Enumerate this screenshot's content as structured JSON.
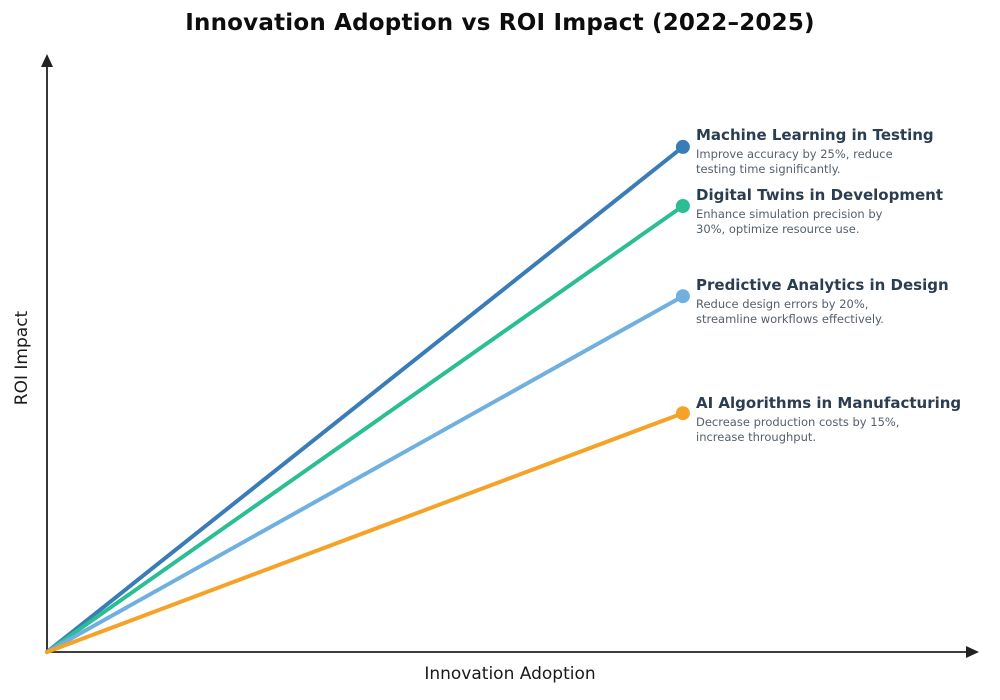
{
  "chart_data": {
    "type": "line",
    "title": "Innovation Adoption vs ROI Impact (2022–2025)",
    "xlabel": "Innovation Adoption",
    "ylabel": "ROI Impact",
    "xlim": [
      0,
      1
    ],
    "ylim": [
      0,
      1
    ],
    "grid": false,
    "ticks": "none",
    "legend": "inline annotations at line endpoints",
    "axis_style": "bare axes with arrowheads",
    "axis_color": "#222222",
    "series": [
      {
        "name": "Machine Learning in Testing",
        "description": "Improve accuracy by 25%, reduce\ntesting time significantly.",
        "color": "#3a7cb8",
        "x": [
          0,
          0.683
        ],
        "y": [
          0,
          0.846
        ]
      },
      {
        "name": "Digital Twins in Development",
        "description": "Enhance simulation precision by\n30%, optimize resource use.",
        "color": "#2cbe93",
        "x": [
          0,
          0.683
        ],
        "y": [
          0,
          0.747
        ]
      },
      {
        "name": "Predictive Analytics in Design",
        "description": "Reduce design errors by 20%,\nstreamline workflows effectively.",
        "color": "#6fb0e0",
        "x": [
          0,
          0.683
        ],
        "y": [
          0,
          0.596
        ]
      },
      {
        "name": "AI Algorithms in Manufacturing",
        "description": "Decrease production costs by 15%,\nincrease throughput.",
        "color": "#f5a227",
        "x": [
          0,
          0.683
        ],
        "y": [
          0,
          0.4
        ]
      }
    ]
  }
}
